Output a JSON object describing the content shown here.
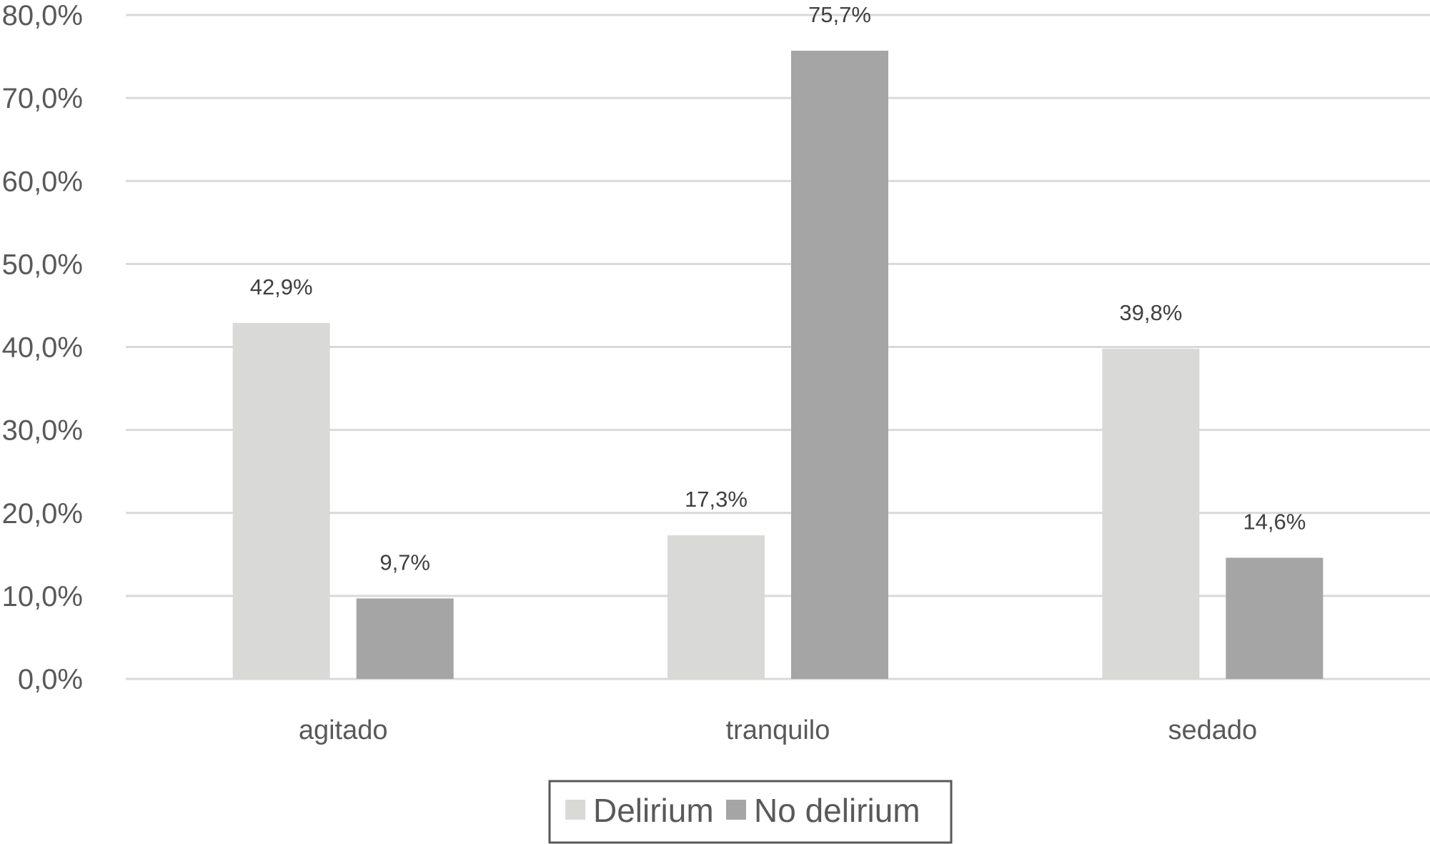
{
  "chart_data": {
    "type": "bar",
    "categories": [
      "agitado",
      "tranquilo",
      "sedado"
    ],
    "series": [
      {
        "name": "Delirium",
        "values": [
          42.9,
          17.3,
          39.8
        ],
        "labels": [
          "42,9%",
          "17,3%",
          "39,8%"
        ],
        "color": "#d9d9d8"
      },
      {
        "name": "No delirium",
        "values": [
          9.7,
          75.7,
          14.6
        ],
        "labels": [
          "9,7%",
          "75,7%",
          "14,6%"
        ],
        "color": "#a5a5a5"
      }
    ],
    "ylim": [
      0,
      80
    ],
    "yticks": [
      0,
      10,
      20,
      30,
      40,
      50,
      60,
      70,
      80
    ],
    "ytick_labels": [
      "0,0%",
      "10,0%",
      "20,0%",
      "30,0%",
      "40,0%",
      "50,0%",
      "60,0%",
      "70,0%",
      "80,0%"
    ],
    "title": "",
    "xlabel": "",
    "ylabel": "",
    "grid": true,
    "gridline_color": "#d9d9d9",
    "legend_position": "bottom",
    "legend_border_color": "#595959"
  }
}
